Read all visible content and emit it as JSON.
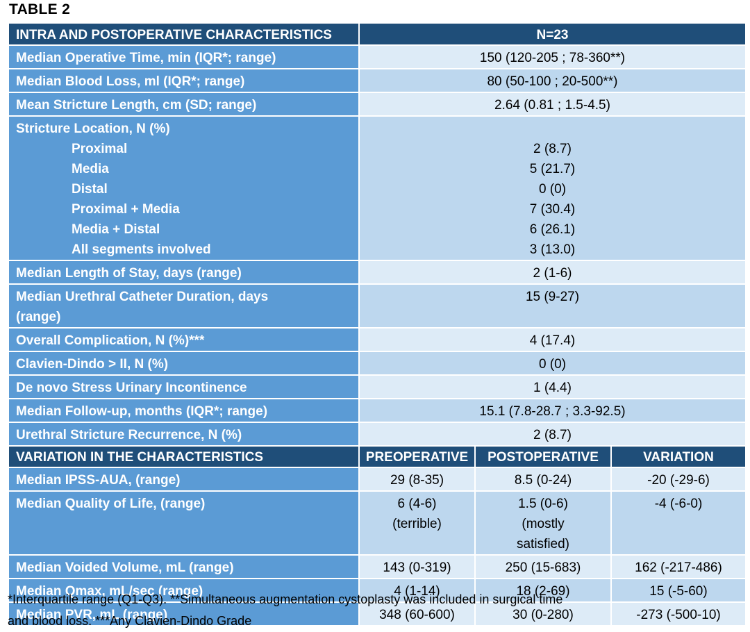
{
  "title": "TABLE 2",
  "section1": {
    "header": "INTRA AND POSTOPERATIVE CHARACTERISTICS",
    "n_header": "N=23",
    "rows": [
      {
        "label": "Median Operative Time, min (IQR*; range)",
        "value": "150 (120-205 ; 78-360**)"
      },
      {
        "label": "Median Blood Loss, ml (IQR*; range)",
        "value": "80 (50-100 ; 20-500**)"
      },
      {
        "label": "Mean Stricture Length, cm (SD; range)",
        "value": "2.64 (0.81 ; 1.5-4.5)"
      }
    ],
    "location": {
      "label": "Stricture Location, N (%)",
      "items": [
        {
          "label": "Proximal",
          "value": "2 (8.7)"
        },
        {
          "label": "Media",
          "value": "5 (21.7)"
        },
        {
          "label": "Distal",
          "value": "0 (0)"
        },
        {
          "label": "Proximal + Media",
          "value": "7 (30.4)"
        },
        {
          "label": "Media + Distal",
          "value": "6 (26.1)"
        },
        {
          "label": "All segments involved",
          "value": "3 (13.0)"
        }
      ]
    },
    "rows2": [
      {
        "label": "Median Length of Stay, days (range)",
        "value": "2 (1-6)"
      },
      {
        "label": "Median Urethral Catheter Duration, days",
        "label2": "(range)",
        "value": "15 (9-27)"
      },
      {
        "label": "Overall Complication, N (%)***",
        "value": "4 (17.4)"
      },
      {
        "label": "Clavien-Dindo > II, N (%)",
        "value": "0 (0)"
      },
      {
        "label": "De novo Stress Urinary Incontinence",
        "value": "1 (4.4)"
      },
      {
        "label": "Median Follow-up, months (IQR*; range)",
        "value": "15.1 (7.8-28.7 ; 3.3-92.5)"
      },
      {
        "label": "Urethral Stricture Recurrence, N (%)",
        "value": "2 (8.7)"
      }
    ]
  },
  "section2": {
    "header": "VARIATION IN THE CHARACTERISTICS",
    "col_pre": "PREOPERATIVE",
    "col_post": "POSTOPERATIVE",
    "col_var": "VARIATION",
    "rows": [
      {
        "label": "Median IPSS-AUA, (range)",
        "pre": "29 (8-35)",
        "post": "8.5 (0-24)",
        "var": "-20 (-29-6)"
      },
      {
        "label": "Median Quality of Life, (range)",
        "pre": "6 (4-6)",
        "pre2": "(terrible)",
        "post": "1.5 (0-6)",
        "post2": "(mostly",
        "post3": "satisfied)",
        "var": "-4 (-6-0)"
      },
      {
        "label": "Median Voided Volume, mL (range)",
        "pre": "143 (0-319)",
        "post": "250 (15-683)",
        "var": "162 (-217-486)"
      },
      {
        "label": "Median Qmax, mL/sec (range)",
        "pre": "4 (1-14)",
        "post": "18 (2-69)",
        "var": "15 (-5-60)"
      },
      {
        "label": "Median PVR, mL (range)",
        "pre": "348 (60-600)",
        "post": "30 (0-280)",
        "var": "-273 (-500-10)"
      }
    ]
  },
  "footnote": {
    "line1": "*Interquartile range (Q1-Q3). **Simultaneous augmentation cystoplasty was included in surgical time",
    "line2": "and blood loss.  ***Any Clavien-Dindo Grade"
  }
}
